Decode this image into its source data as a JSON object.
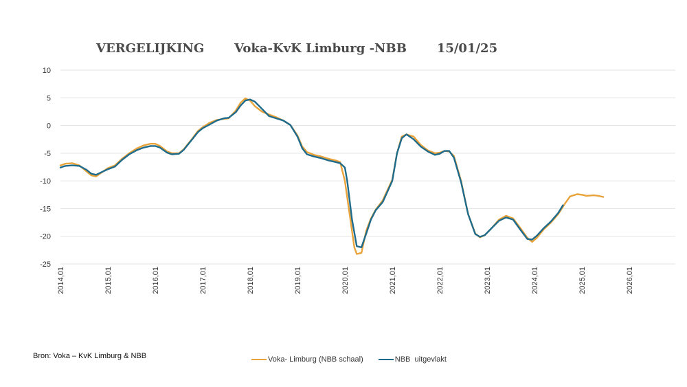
{
  "header": {
    "title_part1": "VERGELIJKING",
    "title_part2": "Voka-KvK Limburg -NBB",
    "title_part3": "15/01/25"
  },
  "footer": {
    "source": "Bron: Voka – KvK Limburg & NBB"
  },
  "chart_data": {
    "type": "line",
    "title": "VERGELIJKING Voka-KvK Limburg -NBB 15/01/25",
    "xlabel": "",
    "ylabel": "",
    "ylim": [
      -25,
      10
    ],
    "yticks": [
      "10",
      "5",
      "0",
      "-5",
      "-10",
      "-15",
      "-20",
      "-25"
    ],
    "xticks": [
      "2014,01",
      "2015,01",
      "2016,01",
      "2017,01",
      "2018,01",
      "2019,01",
      "2020,01",
      "2021,01",
      "2022,01",
      "2023,01",
      "2024,01",
      "2025,01",
      "2026,01"
    ],
    "grid": true,
    "legend_position": "bottom",
    "series": [
      {
        "name": "Voka- Limburg (NBB schaal)",
        "color": "#E8A33A",
        "points": [
          [
            2014.0,
            -7.2
          ],
          [
            2014.1,
            -6.9
          ],
          [
            2014.25,
            -6.8
          ],
          [
            2014.4,
            -7.2
          ],
          [
            2014.55,
            -8.3
          ],
          [
            2014.65,
            -9.0
          ],
          [
            2014.75,
            -9.2
          ],
          [
            2014.85,
            -8.6
          ],
          [
            2015.0,
            -7.7
          ],
          [
            2015.15,
            -7.2
          ],
          [
            2015.3,
            -6.0
          ],
          [
            2015.45,
            -5.0
          ],
          [
            2015.6,
            -4.2
          ],
          [
            2015.75,
            -3.6
          ],
          [
            2015.9,
            -3.3
          ],
          [
            2016.0,
            -3.3
          ],
          [
            2016.1,
            -3.7
          ],
          [
            2016.25,
            -4.7
          ],
          [
            2016.35,
            -5.0
          ],
          [
            2016.5,
            -5.0
          ],
          [
            2016.6,
            -4.3
          ],
          [
            2016.75,
            -2.7
          ],
          [
            2016.9,
            -1.0
          ],
          [
            2017.0,
            -0.3
          ],
          [
            2017.15,
            0.5
          ],
          [
            2017.3,
            1.0
          ],
          [
            2017.45,
            1.2
          ],
          [
            2017.55,
            1.3
          ],
          [
            2017.7,
            2.7
          ],
          [
            2017.8,
            4.1
          ],
          [
            2017.9,
            4.9
          ],
          [
            2018.0,
            4.5
          ],
          [
            2018.1,
            3.5
          ],
          [
            2018.25,
            2.5
          ],
          [
            2018.4,
            2.0
          ],
          [
            2018.55,
            1.5
          ],
          [
            2018.7,
            0.9
          ],
          [
            2018.85,
            0.1
          ],
          [
            2019.0,
            -1.8
          ],
          [
            2019.1,
            -3.8
          ],
          [
            2019.2,
            -4.8
          ],
          [
            2019.35,
            -5.3
          ],
          [
            2019.5,
            -5.6
          ],
          [
            2019.65,
            -6.0
          ],
          [
            2019.8,
            -6.3
          ],
          [
            2019.9,
            -6.6
          ],
          [
            2020.0,
            -10.0
          ],
          [
            2020.1,
            -16.0
          ],
          [
            2020.2,
            -22.0
          ],
          [
            2020.25,
            -23.2
          ],
          [
            2020.35,
            -23.0
          ],
          [
            2020.45,
            -19.0
          ],
          [
            2020.55,
            -16.8
          ],
          [
            2020.65,
            -15.2
          ],
          [
            2020.8,
            -13.5
          ],
          [
            2021.0,
            -9.8
          ],
          [
            2021.1,
            -5.0
          ],
          [
            2021.2,
            -2.0
          ],
          [
            2021.3,
            -1.6
          ],
          [
            2021.45,
            -2.0
          ],
          [
            2021.6,
            -3.5
          ],
          [
            2021.75,
            -4.5
          ],
          [
            2021.9,
            -5.0
          ],
          [
            2022.0,
            -4.9
          ],
          [
            2022.1,
            -4.6
          ],
          [
            2022.2,
            -4.7
          ],
          [
            2022.3,
            -5.5
          ],
          [
            2022.45,
            -10.0
          ],
          [
            2022.6,
            -16.0
          ],
          [
            2022.75,
            -19.5
          ],
          [
            2022.85,
            -20.2
          ],
          [
            2022.95,
            -19.8
          ],
          [
            2023.1,
            -18.5
          ],
          [
            2023.25,
            -17.0
          ],
          [
            2023.4,
            -16.3
          ],
          [
            2023.55,
            -16.8
          ],
          [
            2023.7,
            -18.5
          ],
          [
            2023.85,
            -20.3
          ],
          [
            2023.95,
            -21.0
          ],
          [
            2024.05,
            -20.3
          ],
          [
            2024.2,
            -18.7
          ],
          [
            2024.35,
            -17.5
          ],
          [
            2024.5,
            -16.0
          ],
          [
            2024.65,
            -14.0
          ],
          [
            2024.75,
            -12.8
          ],
          [
            2024.9,
            -12.4
          ],
          [
            2025.0,
            -12.5
          ],
          [
            2025.1,
            -12.7
          ],
          [
            2025.25,
            -12.6
          ],
          [
            2025.35,
            -12.7
          ],
          [
            2025.45,
            -12.9
          ]
        ]
      },
      {
        "name": "NBB  uitgevlakt",
        "color": "#1F6B8C",
        "points": [
          [
            2014.0,
            -7.6
          ],
          [
            2014.1,
            -7.3
          ],
          [
            2014.25,
            -7.2
          ],
          [
            2014.4,
            -7.3
          ],
          [
            2014.55,
            -8.0
          ],
          [
            2014.65,
            -8.7
          ],
          [
            2014.75,
            -8.9
          ],
          [
            2014.85,
            -8.5
          ],
          [
            2015.0,
            -7.9
          ],
          [
            2015.15,
            -7.4
          ],
          [
            2015.3,
            -6.2
          ],
          [
            2015.45,
            -5.2
          ],
          [
            2015.6,
            -4.5
          ],
          [
            2015.75,
            -4.0
          ],
          [
            2015.9,
            -3.7
          ],
          [
            2016.0,
            -3.7
          ],
          [
            2016.1,
            -4.0
          ],
          [
            2016.25,
            -4.9
          ],
          [
            2016.35,
            -5.2
          ],
          [
            2016.5,
            -5.1
          ],
          [
            2016.6,
            -4.4
          ],
          [
            2016.75,
            -2.8
          ],
          [
            2016.9,
            -1.2
          ],
          [
            2017.0,
            -0.5
          ],
          [
            2017.15,
            0.2
          ],
          [
            2017.3,
            0.9
          ],
          [
            2017.45,
            1.3
          ],
          [
            2017.55,
            1.4
          ],
          [
            2017.7,
            2.4
          ],
          [
            2017.8,
            3.6
          ],
          [
            2017.9,
            4.5
          ],
          [
            2018.0,
            4.7
          ],
          [
            2018.1,
            4.3
          ],
          [
            2018.25,
            3.0
          ],
          [
            2018.4,
            1.7
          ],
          [
            2018.55,
            1.3
          ],
          [
            2018.7,
            0.9
          ],
          [
            2018.85,
            0.1
          ],
          [
            2019.0,
            -2.0
          ],
          [
            2019.1,
            -4.1
          ],
          [
            2019.2,
            -5.2
          ],
          [
            2019.35,
            -5.6
          ],
          [
            2019.5,
            -5.9
          ],
          [
            2019.65,
            -6.3
          ],
          [
            2019.8,
            -6.6
          ],
          [
            2019.9,
            -6.8
          ],
          [
            2020.0,
            -7.6
          ],
          [
            2020.05,
            -10.0
          ],
          [
            2020.15,
            -17.0
          ],
          [
            2020.25,
            -21.8
          ],
          [
            2020.35,
            -22.0
          ],
          [
            2020.45,
            -19.5
          ],
          [
            2020.55,
            -17.0
          ],
          [
            2020.65,
            -15.3
          ],
          [
            2020.8,
            -13.8
          ],
          [
            2021.0,
            -10.0
          ],
          [
            2021.1,
            -5.0
          ],
          [
            2021.2,
            -2.3
          ],
          [
            2021.3,
            -1.6
          ],
          [
            2021.45,
            -2.5
          ],
          [
            2021.6,
            -3.8
          ],
          [
            2021.75,
            -4.7
          ],
          [
            2021.9,
            -5.3
          ],
          [
            2022.0,
            -5.1
          ],
          [
            2022.1,
            -4.6
          ],
          [
            2022.2,
            -4.6
          ],
          [
            2022.3,
            -5.8
          ],
          [
            2022.45,
            -10.2
          ],
          [
            2022.6,
            -16.0
          ],
          [
            2022.75,
            -19.6
          ],
          [
            2022.85,
            -20.1
          ],
          [
            2022.95,
            -19.8
          ],
          [
            2023.1,
            -18.5
          ],
          [
            2023.25,
            -17.2
          ],
          [
            2023.4,
            -16.6
          ],
          [
            2023.55,
            -17.0
          ],
          [
            2023.7,
            -18.8
          ],
          [
            2023.85,
            -20.5
          ],
          [
            2023.95,
            -20.6
          ],
          [
            2024.05,
            -19.9
          ],
          [
            2024.2,
            -18.5
          ],
          [
            2024.35,
            -17.3
          ],
          [
            2024.5,
            -15.8
          ],
          [
            2024.6,
            -14.4
          ]
        ]
      }
    ]
  }
}
